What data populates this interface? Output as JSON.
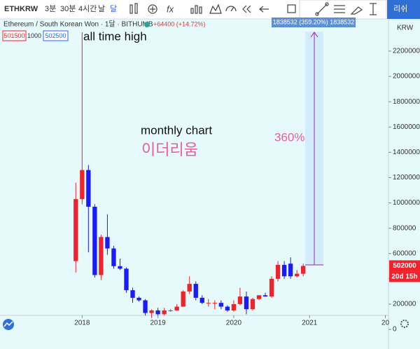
{
  "toolbar": {
    "symbol": "ETHKRW",
    "intervals": [
      "3분",
      "30분",
      "4시간",
      "날",
      "달"
    ],
    "publish": "리쉬"
  },
  "legend": {
    "title": "Ethereum / South Korean Won · 1달 · BITHUMB",
    "change": "+64400 (+14.72%)",
    "bid": "501500",
    "spread": "1000",
    "ask": "502500"
  },
  "chart_data": {
    "type": "candlestick",
    "annotations": [
      "all time high",
      "monthly chart",
      "이더리움",
      "360%"
    ],
    "measure_label": "1838532 (359.20%) 1838532",
    "open": [
      540000,
      1030000,
      1260000,
      970000,
      430000,
      730000,
      640000,
      500000,
      480000,
      310000,
      250000,
      230000,
      130000,
      150000,
      120000,
      150000,
      150000,
      180000,
      300000,
      360000,
      250000,
      210000,
      210000,
      210000,
      180000,
      150000,
      200000,
      260000,
      160000,
      240000,
      270000,
      260000,
      400000,
      510000,
      520000,
      420000,
      440000
    ],
    "high": [
      1160000,
      2350000,
      1300000,
      990000,
      750000,
      910000,
      660000,
      560000,
      490000,
      330000,
      260000,
      240000,
      160000,
      170000,
      170000,
      160000,
      200000,
      310000,
      420000,
      380000,
      270000,
      240000,
      230000,
      230000,
      190000,
      230000,
      330000,
      300000,
      250000,
      270000,
      290000,
      420000,
      540000,
      540000,
      570000,
      470000,
      520000
    ],
    "low": [
      450000,
      990000,
      610000,
      410000,
      390000,
      590000,
      480000,
      470000,
      290000,
      210000,
      220000,
      110000,
      90000,
      110000,
      110000,
      140000,
      150000,
      180000,
      280000,
      230000,
      200000,
      180000,
      160000,
      160000,
      140000,
      140000,
      190000,
      120000,
      150000,
      230000,
      260000,
      250000,
      380000,
      400000,
      400000,
      410000,
      420000
    ],
    "close": [
      1030000,
      1260000,
      970000,
      430000,
      730000,
      640000,
      500000,
      480000,
      310000,
      250000,
      230000,
      130000,
      150000,
      120000,
      150000,
      150000,
      180000,
      300000,
      360000,
      250000,
      210000,
      210000,
      210000,
      180000,
      150000,
      200000,
      260000,
      160000,
      240000,
      270000,
      260000,
      400000,
      510000,
      420000,
      420000,
      440000,
      502000
    ],
    "up_color": "#f0222b",
    "down_color": "#1a1aff",
    "xlim": [
      -12,
      49.5
    ],
    "xticks": [
      {
        "value": 1,
        "label": "2018"
      },
      {
        "value": 13,
        "label": "2019"
      },
      {
        "value": 25,
        "label": "2020"
      },
      {
        "value": 37,
        "label": "2021"
      },
      {
        "value": 49,
        "label": "20"
      }
    ],
    "ylim": [
      -44000,
      2449000
    ],
    "yticks": [
      0,
      200000,
      400000,
      600000,
      800000,
      1000000,
      1200000,
      1400000,
      1600000,
      1800000,
      2000000,
      2200000
    ],
    "currency": "KRW",
    "price_label": 502000,
    "countdown": "20d 15h"
  }
}
